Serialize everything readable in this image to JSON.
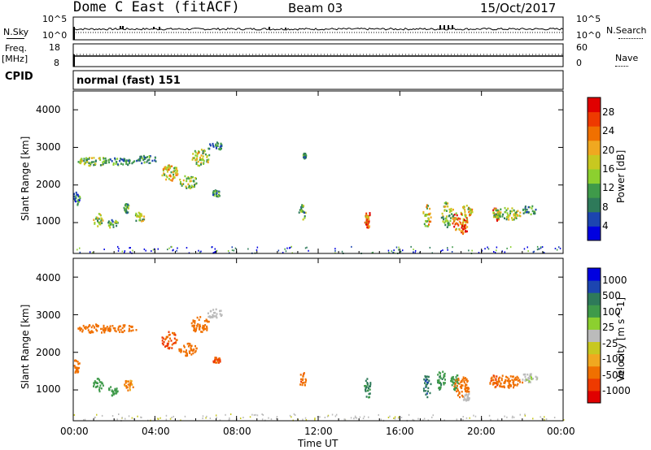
{
  "header": {
    "title": "Dome C East (fitACF)",
    "beam": "Beam 03",
    "date": "15/Oct/2017"
  },
  "noise_panel": {
    "left_label": "N.Sky",
    "right_label": "N.Search",
    "left_ticks": [
      "10^5",
      "10^0"
    ],
    "right_ticks": [
      "10^5",
      "10^0"
    ]
  },
  "freq_panel": {
    "left_label": "Freq.",
    "left_unit": "[MHz]",
    "right_label": "Nave",
    "left_ticks": [
      "18",
      "8"
    ],
    "right_ticks": [
      "60",
      "0"
    ]
  },
  "cpid_panel": {
    "label": "CPID",
    "text": "normal (fast) 151"
  },
  "x_axis": {
    "label": "Time UT",
    "ticks": [
      "00:00",
      "04:00",
      "08:00",
      "12:00",
      "16:00",
      "20:00",
      "00:00"
    ]
  },
  "chart_data": [
    {
      "type": "heatmap",
      "title": "Power",
      "ylabel": "Slant Range [km]",
      "xlabel": "Time UT",
      "ylim": [
        180,
        4500
      ],
      "xlim": [
        0,
        24
      ],
      "yticks": [
        "4000",
        "3000",
        "2000",
        "1000"
      ],
      "colorbar": {
        "label": "Power [dB]",
        "ticks": [
          "28",
          "24",
          "20",
          "16",
          "12",
          "8",
          "4"
        ],
        "colors": [
          "#0000e0",
          "#1c45b0",
          "#2e7a5a",
          "#3f9a4a",
          "#8cd02f",
          "#c8c820",
          "#f0a820",
          "#f07000",
          "#ee3a00",
          "#e00000"
        ]
      },
      "patches": [
        {
          "t": 0.1,
          "r": 1650,
          "w": 0.4,
          "h": 350,
          "v": 8
        },
        {
          "t": 1.0,
          "r": 2650,
          "w": 1.6,
          "h": 250,
          "v": 14
        },
        {
          "t": 1.2,
          "r": 1100,
          "w": 0.5,
          "h": 350,
          "v": 14
        },
        {
          "t": 1.9,
          "r": 1000,
          "w": 0.5,
          "h": 250,
          "v": 12
        },
        {
          "t": 2.3,
          "r": 2650,
          "w": 1.6,
          "h": 200,
          "v": 10
        },
        {
          "t": 2.6,
          "r": 1400,
          "w": 0.3,
          "h": 250,
          "v": 12
        },
        {
          "t": 3.2,
          "r": 1150,
          "w": 0.5,
          "h": 300,
          "v": 14
        },
        {
          "t": 3.6,
          "r": 2700,
          "w": 1.0,
          "h": 250,
          "v": 10
        },
        {
          "t": 4.7,
          "r": 2350,
          "w": 0.8,
          "h": 450,
          "v": 18
        },
        {
          "t": 5.6,
          "r": 2100,
          "w": 0.9,
          "h": 350,
          "v": 14
        },
        {
          "t": 6.2,
          "r": 2750,
          "w": 0.9,
          "h": 450,
          "v": 16
        },
        {
          "t": 6.9,
          "r": 3050,
          "w": 0.8,
          "h": 250,
          "v": 8
        },
        {
          "t": 7.0,
          "r": 1800,
          "w": 0.4,
          "h": 200,
          "v": 10
        },
        {
          "t": 11.2,
          "r": 1300,
          "w": 0.35,
          "h": 400,
          "v": 12
        },
        {
          "t": 11.3,
          "r": 2800,
          "w": 0.15,
          "h": 150,
          "v": 8
        },
        {
          "t": 14.4,
          "r": 1100,
          "w": 0.35,
          "h": 500,
          "v": 24
        },
        {
          "t": 14.4,
          "r": 1050,
          "w": 0.15,
          "h": 250,
          "v": 28
        },
        {
          "t": 17.3,
          "r": 1200,
          "w": 0.4,
          "h": 600,
          "v": 18
        },
        {
          "t": 18.3,
          "r": 1250,
          "w": 0.6,
          "h": 700,
          "v": 14
        },
        {
          "t": 18.9,
          "r": 1050,
          "w": 0.8,
          "h": 550,
          "v": 22
        },
        {
          "t": 19.1,
          "r": 850,
          "w": 0.5,
          "h": 250,
          "v": 28
        },
        {
          "t": 19.3,
          "r": 1350,
          "w": 0.6,
          "h": 300,
          "v": 18
        },
        {
          "t": 20.7,
          "r": 1250,
          "w": 0.4,
          "h": 350,
          "v": 26
        },
        {
          "t": 21.2,
          "r": 1250,
          "w": 1.4,
          "h": 350,
          "v": 14
        },
        {
          "t": 22.3,
          "r": 1350,
          "w": 0.8,
          "h": 250,
          "v": 10
        }
      ]
    },
    {
      "type": "heatmap",
      "title": "Velocity",
      "ylabel": "Slant Range [km]",
      "xlabel": "Time UT",
      "ylim": [
        180,
        4500
      ],
      "xlim": [
        0,
        24
      ],
      "yticks": [
        "4000",
        "3000",
        "2000",
        "1000"
      ],
      "colorbar": {
        "label": "Velocity [m s^-1]",
        "ticks": [
          "1000",
          "500",
          "100",
          "25",
          "-25",
          "-100",
          "-500",
          "-1000"
        ],
        "colors": [
          "#e00000",
          "#ee3a00",
          "#f07000",
          "#f0a820",
          "#c8c820",
          "#bbbbbb",
          "#8cd02f",
          "#3f9a4a",
          "#2e7a5a",
          "#1c45b0",
          "#0000e0"
        ]
      },
      "patches": [
        {
          "t": 0.1,
          "r": 1650,
          "w": 0.4,
          "h": 350,
          "v": -200
        },
        {
          "t": 1.0,
          "r": 2650,
          "w": 1.6,
          "h": 250,
          "v": -150
        },
        {
          "t": 1.2,
          "r": 1150,
          "w": 0.5,
          "h": 350,
          "v": 300
        },
        {
          "t": 1.9,
          "r": 1000,
          "w": 0.5,
          "h": 250,
          "v": 200
        },
        {
          "t": 2.3,
          "r": 2650,
          "w": 1.6,
          "h": 200,
          "v": -150
        },
        {
          "t": 2.7,
          "r": 1150,
          "w": 0.5,
          "h": 300,
          "v": -100
        },
        {
          "t": 4.7,
          "r": 2350,
          "w": 0.8,
          "h": 450,
          "v": -500
        },
        {
          "t": 5.6,
          "r": 2100,
          "w": 0.9,
          "h": 350,
          "v": -300
        },
        {
          "t": 6.2,
          "r": 2750,
          "w": 0.9,
          "h": 450,
          "v": -150
        },
        {
          "t": 6.9,
          "r": 3050,
          "w": 0.8,
          "h": 250,
          "v": 10
        },
        {
          "t": 7.0,
          "r": 1800,
          "w": 0.4,
          "h": 200,
          "v": -500
        },
        {
          "t": 11.2,
          "r": 1300,
          "w": 0.35,
          "h": 400,
          "v": -400
        },
        {
          "t": 14.4,
          "r": 1050,
          "w": 0.35,
          "h": 550,
          "v": 600
        },
        {
          "t": 17.3,
          "r": 1150,
          "w": 0.4,
          "h": 650,
          "v": 900
        },
        {
          "t": 18.0,
          "r": 1300,
          "w": 0.4,
          "h": 600,
          "v": 400
        },
        {
          "t": 18.6,
          "r": 1250,
          "w": 0.5,
          "h": 500,
          "v": 200
        },
        {
          "t": 19.0,
          "r": 1100,
          "w": 0.8,
          "h": 550,
          "v": -300
        },
        {
          "t": 19.2,
          "r": 850,
          "w": 0.4,
          "h": 250,
          "v": 10
        },
        {
          "t": 20.6,
          "r": 1250,
          "w": 0.5,
          "h": 350,
          "v": -500
        },
        {
          "t": 21.3,
          "r": 1250,
          "w": 1.4,
          "h": 350,
          "v": -200
        },
        {
          "t": 22.3,
          "r": 1350,
          "w": 0.8,
          "h": 250,
          "v": 20
        }
      ]
    }
  ],
  "colors": {
    "frame": "#000000",
    "background": "#ffffff"
  }
}
